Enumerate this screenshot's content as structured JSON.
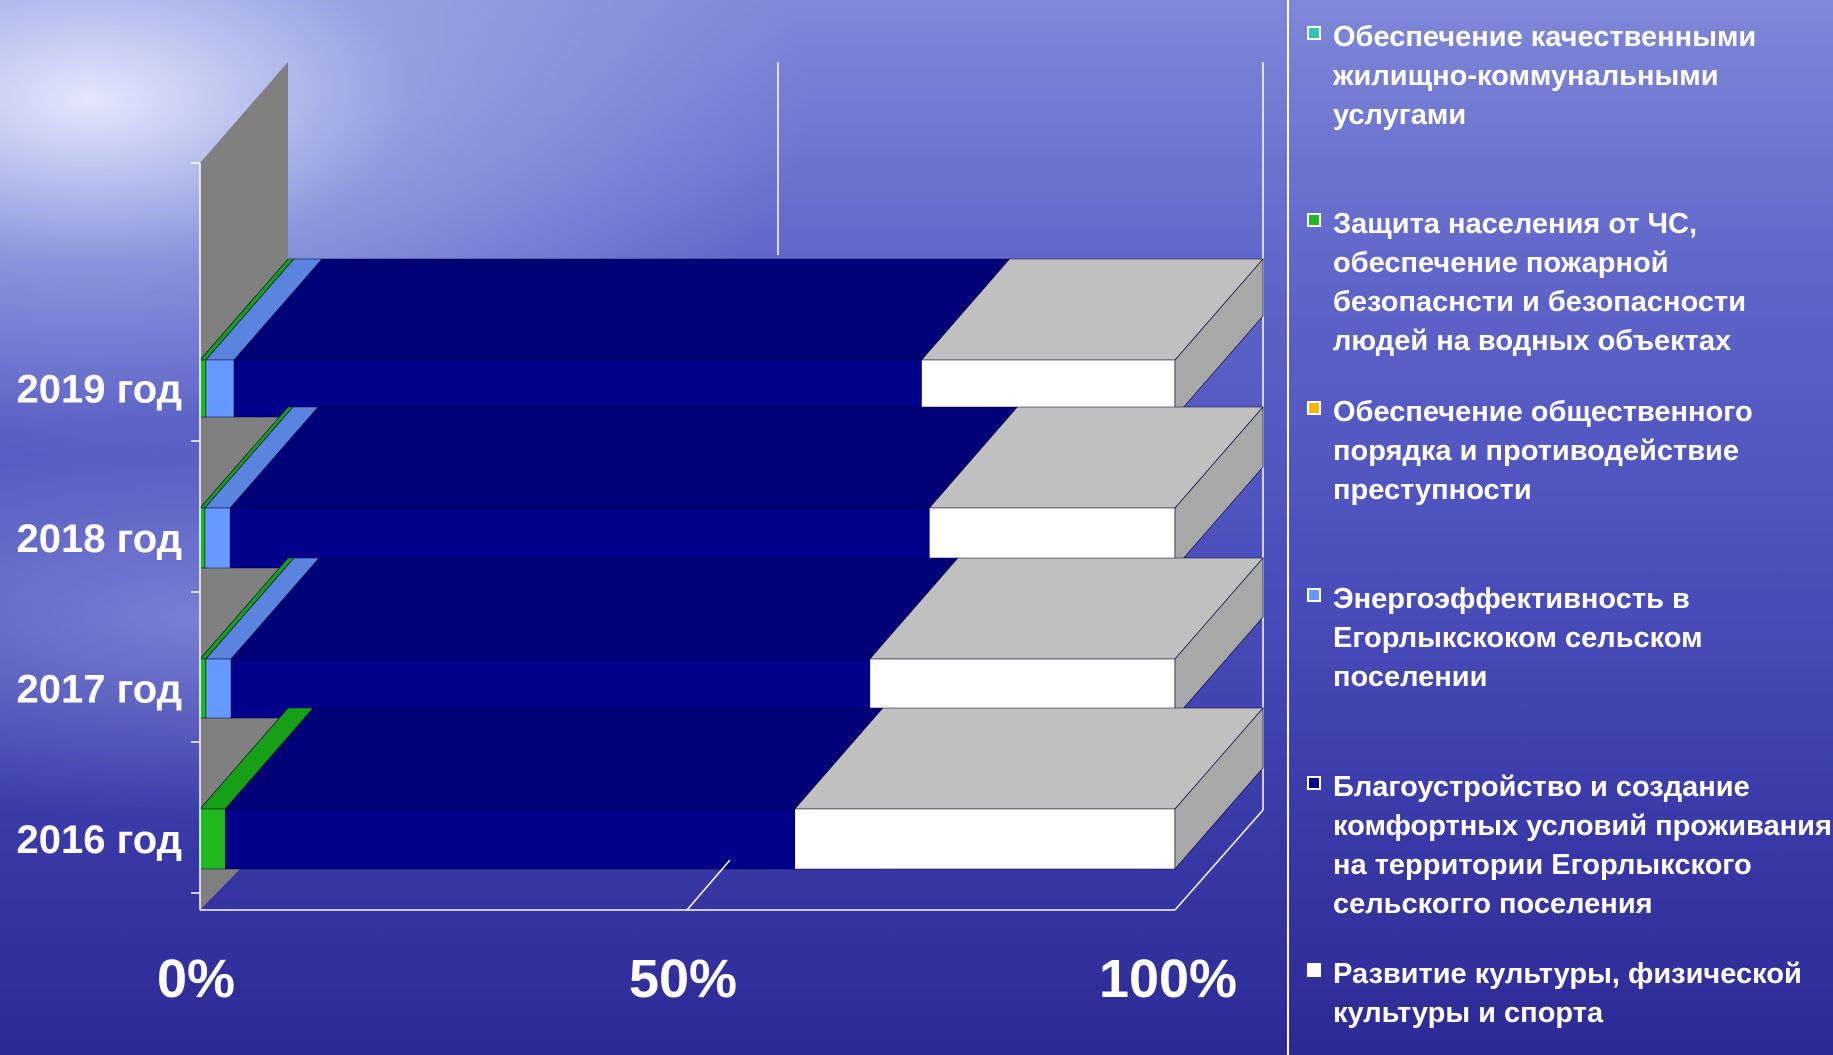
{
  "chart_data": {
    "type": "bar",
    "orientation": "horizontal",
    "stacking": "percent",
    "style_3d": true,
    "categories": [
      "2019 год",
      "2018 год",
      "2017 год",
      "2016 год"
    ],
    "x_ticks": [
      "0%",
      "50%",
      "100%"
    ],
    "xlim": [
      0,
      100
    ],
    "grid": true,
    "legend_position": "right",
    "series": [
      {
        "name": "Обеспечение качественными жилищно-коммунальными услугами",
        "color": "#2ec4b6",
        "values": [
          0.0,
          0.0,
          0.0,
          0.0
        ]
      },
      {
        "name": "Защита населения от ЧС, обеспечение пожарной безопаснсти и безопасности людей на водных объектах",
        "color": "#1fb81f",
        "values": [
          0.6,
          0.5,
          0.6,
          2.6
        ]
      },
      {
        "name": "Обеспечение общественного порядка и противодействие преступности",
        "color": "#f5b800",
        "values": [
          0.0,
          0.0,
          0.0,
          0.0
        ]
      },
      {
        "name": "Энергоэффективность в Егорлыкскоком сельском поселении",
        "color": "#6699ff",
        "values": [
          2.9,
          2.6,
          2.6,
          0.0
        ]
      },
      {
        "name": "Благоустройство и создание комфортных условий проживания на территории Егорлыкского сельскогго поселения",
        "color": "#00008b",
        "values": [
          70.5,
          71.7,
          65.5,
          58.4
        ]
      },
      {
        "name": "Развитие культуры, физической культуры и спорта",
        "color": "#ffffff",
        "values": [
          26.0,
          25.2,
          31.3,
          39.0
        ]
      }
    ]
  }
}
